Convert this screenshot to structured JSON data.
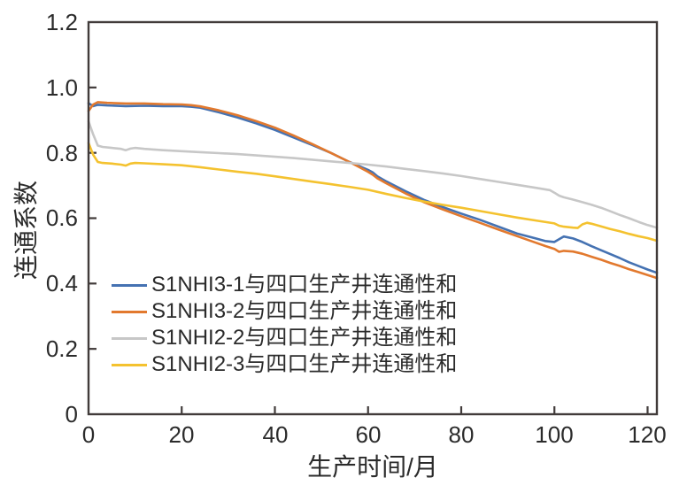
{
  "figure": {
    "background": "#ffffff",
    "axis_color": "#413b3a",
    "text_color": "#2b2b2b"
  },
  "chart_data": {
    "type": "line",
    "title": "",
    "xlabel": "生产时间/月",
    "ylabel": "连通系数",
    "xlim": [
      0,
      122
    ],
    "ylim": [
      0,
      1.2
    ],
    "x_ticks": [
      0,
      20,
      40,
      60,
      80,
      100,
      120
    ],
    "x_tick_labels": [
      "0",
      "20",
      "40",
      "60",
      "80",
      "100",
      "120"
    ],
    "y_ticks": [
      0,
      0.2,
      0.4,
      0.6,
      0.8,
      1.0,
      1.2
    ],
    "y_tick_labels": [
      "0",
      "0.2",
      "0.4",
      "0.6",
      "0.8",
      "1.0",
      "1.2"
    ],
    "grid": false,
    "legend_position": "inside-lower-left",
    "series": [
      {
        "name": "S1NHI3-1与四口生产井连通性和",
        "color": "#4572b2",
        "points": [
          [
            0,
            0.952
          ],
          [
            1,
            0.943
          ],
          [
            2,
            0.947
          ],
          [
            4,
            0.945
          ],
          [
            8,
            0.943
          ],
          [
            12,
            0.944
          ],
          [
            16,
            0.943
          ],
          [
            20,
            0.943
          ],
          [
            22,
            0.941
          ],
          [
            24,
            0.938
          ],
          [
            28,
            0.924
          ],
          [
            32,
            0.908
          ],
          [
            36,
            0.89
          ],
          [
            40,
            0.87
          ],
          [
            44,
            0.847
          ],
          [
            48,
            0.824
          ],
          [
            52,
            0.8
          ],
          [
            56,
            0.772
          ],
          [
            58,
            0.76
          ],
          [
            60,
            0.748
          ],
          [
            61,
            0.74
          ],
          [
            62,
            0.728
          ],
          [
            64,
            0.712
          ],
          [
            68,
            0.683
          ],
          [
            72,
            0.656
          ],
          [
            76,
            0.634
          ],
          [
            80,
            0.614
          ],
          [
            84,
            0.595
          ],
          [
            88,
            0.574
          ],
          [
            92,
            0.553
          ],
          [
            96,
            0.538
          ],
          [
            98,
            0.53
          ],
          [
            100,
            0.527
          ],
          [
            102,
            0.544
          ],
          [
            104,
            0.538
          ],
          [
            106,
            0.527
          ],
          [
            108,
            0.514
          ],
          [
            110,
            0.502
          ],
          [
            112,
            0.49
          ],
          [
            114,
            0.478
          ],
          [
            116,
            0.465
          ],
          [
            118,
            0.454
          ],
          [
            120,
            0.443
          ],
          [
            122,
            0.433
          ]
        ]
      },
      {
        "name": "S1NHI3-2与四口生产井连通性和",
        "color": "#e2792e",
        "points": [
          [
            0,
            0.928
          ],
          [
            1,
            0.948
          ],
          [
            2,
            0.955
          ],
          [
            4,
            0.953
          ],
          [
            8,
            0.951
          ],
          [
            12,
            0.951
          ],
          [
            16,
            0.949
          ],
          [
            20,
            0.948
          ],
          [
            22,
            0.946
          ],
          [
            24,
            0.942
          ],
          [
            28,
            0.93
          ],
          [
            32,
            0.915
          ],
          [
            36,
            0.897
          ],
          [
            40,
            0.877
          ],
          [
            44,
            0.853
          ],
          [
            48,
            0.827
          ],
          [
            52,
            0.8
          ],
          [
            56,
            0.772
          ],
          [
            58,
            0.757
          ],
          [
            60,
            0.742
          ],
          [
            61,
            0.733
          ],
          [
            62,
            0.722
          ],
          [
            64,
            0.706
          ],
          [
            68,
            0.676
          ],
          [
            72,
            0.649
          ],
          [
            76,
            0.627
          ],
          [
            80,
            0.606
          ],
          [
            84,
            0.586
          ],
          [
            88,
            0.565
          ],
          [
            92,
            0.545
          ],
          [
            96,
            0.525
          ],
          [
            98,
            0.515
          ],
          [
            100,
            0.506
          ],
          [
            101,
            0.497
          ],
          [
            102,
            0.5
          ],
          [
            104,
            0.498
          ],
          [
            106,
            0.491
          ],
          [
            108,
            0.482
          ],
          [
            110,
            0.473
          ],
          [
            112,
            0.463
          ],
          [
            114,
            0.454
          ],
          [
            116,
            0.444
          ],
          [
            118,
            0.435
          ],
          [
            120,
            0.426
          ],
          [
            122,
            0.417
          ]
        ]
      },
      {
        "name": "S1NHI2-2与四口生产井连通性和",
        "color": "#c7c7c7",
        "points": [
          [
            0,
            0.896
          ],
          [
            1,
            0.856
          ],
          [
            2,
            0.822
          ],
          [
            3,
            0.818
          ],
          [
            5,
            0.815
          ],
          [
            7,
            0.812
          ],
          [
            8,
            0.808
          ],
          [
            9,
            0.813
          ],
          [
            10,
            0.815
          ],
          [
            12,
            0.812
          ],
          [
            16,
            0.808
          ],
          [
            20,
            0.805
          ],
          [
            24,
            0.802
          ],
          [
            28,
            0.799
          ],
          [
            32,
            0.796
          ],
          [
            36,
            0.792
          ],
          [
            40,
            0.788
          ],
          [
            44,
            0.784
          ],
          [
            48,
            0.779
          ],
          [
            52,
            0.774
          ],
          [
            56,
            0.769
          ],
          [
            60,
            0.764
          ],
          [
            64,
            0.758
          ],
          [
            68,
            0.751
          ],
          [
            72,
            0.744
          ],
          [
            76,
            0.737
          ],
          [
            80,
            0.729
          ],
          [
            84,
            0.72
          ],
          [
            88,
            0.711
          ],
          [
            92,
            0.702
          ],
          [
            96,
            0.693
          ],
          [
            99,
            0.686
          ],
          [
            100,
            0.678
          ],
          [
            101,
            0.669
          ],
          [
            102,
            0.664
          ],
          [
            104,
            0.657
          ],
          [
            106,
            0.649
          ],
          [
            108,
            0.641
          ],
          [
            110,
            0.632
          ],
          [
            112,
            0.621
          ],
          [
            114,
            0.61
          ],
          [
            116,
            0.6
          ],
          [
            118,
            0.589
          ],
          [
            120,
            0.579
          ],
          [
            122,
            0.571
          ]
        ]
      },
      {
        "name": "S1NHI2-3与四口生产井连通性和",
        "color": "#f4c22f",
        "points": [
          [
            0,
            0.83
          ],
          [
            1,
            0.794
          ],
          [
            2,
            0.772
          ],
          [
            3,
            0.769
          ],
          [
            5,
            0.767
          ],
          [
            7,
            0.764
          ],
          [
            8,
            0.761
          ],
          [
            9,
            0.767
          ],
          [
            10,
            0.769
          ],
          [
            12,
            0.768
          ],
          [
            16,
            0.765
          ],
          [
            20,
            0.762
          ],
          [
            24,
            0.756
          ],
          [
            28,
            0.749
          ],
          [
            32,
            0.742
          ],
          [
            36,
            0.736
          ],
          [
            40,
            0.728
          ],
          [
            44,
            0.72
          ],
          [
            48,
            0.712
          ],
          [
            52,
            0.704
          ],
          [
            56,
            0.696
          ],
          [
            60,
            0.687
          ],
          [
            64,
            0.674
          ],
          [
            68,
            0.662
          ],
          [
            72,
            0.651
          ],
          [
            76,
            0.641
          ],
          [
            80,
            0.632
          ],
          [
            84,
            0.622
          ],
          [
            88,
            0.612
          ],
          [
            92,
            0.602
          ],
          [
            96,
            0.593
          ],
          [
            100,
            0.584
          ],
          [
            101,
            0.577
          ],
          [
            102,
            0.574
          ],
          [
            104,
            0.571
          ],
          [
            105,
            0.57
          ],
          [
            106,
            0.581
          ],
          [
            107,
            0.586
          ],
          [
            108,
            0.583
          ],
          [
            110,
            0.575
          ],
          [
            112,
            0.567
          ],
          [
            114,
            0.56
          ],
          [
            116,
            0.552
          ],
          [
            118,
            0.545
          ],
          [
            120,
            0.539
          ],
          [
            122,
            0.531
          ]
        ]
      }
    ]
  }
}
